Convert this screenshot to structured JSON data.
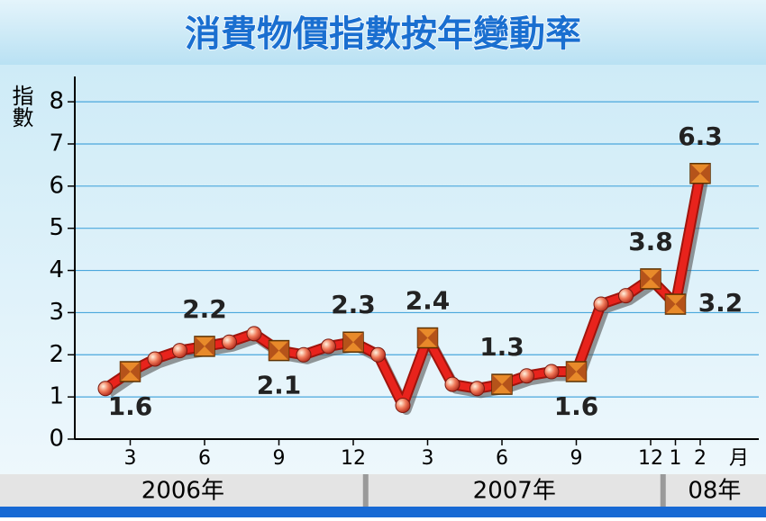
{
  "chart_data": {
    "type": "line",
    "title": "消費物價指數按年變動率",
    "y_label": "指數",
    "x_unit": "月",
    "categories": [
      null,
      "3",
      null,
      null,
      "6",
      null,
      null,
      "9",
      null,
      null,
      "12",
      null,
      null,
      "3",
      null,
      null,
      "6",
      null,
      null,
      "9",
      null,
      null,
      "12",
      "1",
      "2"
    ],
    "x_groups": [
      {
        "label": "2006年",
        "count": 11
      },
      {
        "label": "2007年",
        "count": 12
      },
      {
        "label": "08年",
        "count": 2
      }
    ],
    "series": [
      {
        "color": "#e8231c",
        "values": [
          1.2,
          1.6,
          1.9,
          2.1,
          2.2,
          2.3,
          2.5,
          2.1,
          2.0,
          2.2,
          2.3,
          2.0,
          0.8,
          2.4,
          1.3,
          1.2,
          1.3,
          1.5,
          1.6,
          1.6,
          3.2,
          3.4,
          3.8,
          3.2,
          6.3
        ],
        "value_labels": [
          null,
          "1.6",
          null,
          null,
          "2.2",
          null,
          null,
          "2.1",
          null,
          null,
          "2.3",
          null,
          null,
          "2.4",
          null,
          null,
          "1.3",
          null,
          null,
          "1.6",
          null,
          null,
          "3.8",
          "3.2",
          "6.3"
        ]
      }
    ],
    "ylim": [
      0,
      8.6
    ],
    "yticks": [
      0,
      1,
      2,
      3,
      4,
      5,
      6,
      7,
      8
    ],
    "grid": true
  }
}
